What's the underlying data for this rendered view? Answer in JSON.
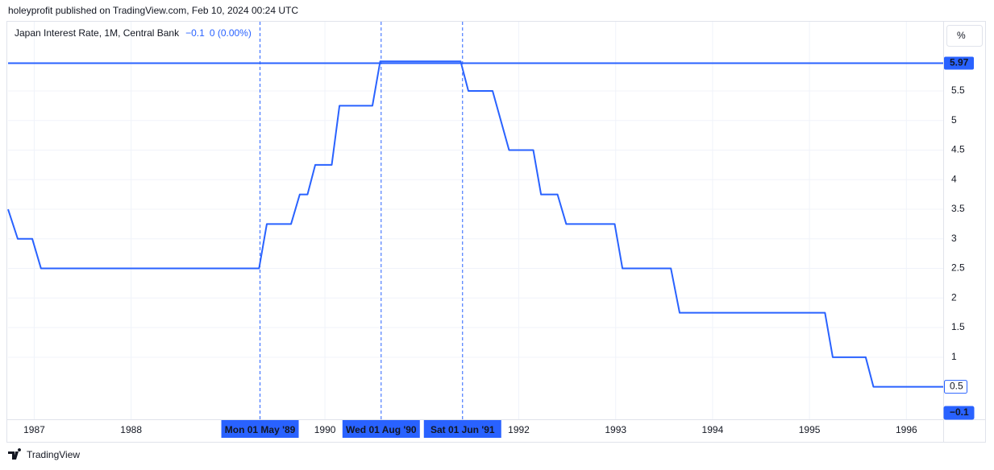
{
  "chart_data": {
    "type": "line",
    "caption": "holeyprofit published on TradingView.com, Feb 10, 2024 00:24 UTC",
    "title": "Japan Interest Rate, 1M, Central Bank",
    "header_value": "−0.1",
    "header_change": "0 (0.00%)",
    "unit_button": "%",
    "footer": "TradingView",
    "x": [
      1986.73,
      1986.83,
      1986.98,
      1987.07,
      1989.32,
      1989.4,
      1989.65,
      1989.74,
      1989.82,
      1989.9,
      1990.07,
      1990.15,
      1990.49,
      1990.57,
      1991.4,
      1991.48,
      1991.73,
      1991.9,
      1992.15,
      1992.23,
      1992.4,
      1992.49,
      1992.99,
      1993.07,
      1993.57,
      1993.66,
      1995.16,
      1995.24,
      1995.58,
      1995.66,
      1996.38
    ],
    "series": [
      {
        "name": "Japan Interest Rate",
        "color": "#2962ff",
        "values": [
          3.5,
          3,
          3,
          2.5,
          2.5,
          3.25,
          3.25,
          3.75,
          3.75,
          4.25,
          4.25,
          5.25,
          5.25,
          6,
          6,
          5.5,
          5.5,
          4.5,
          4.5,
          3.75,
          3.75,
          3.25,
          3.25,
          2.5,
          2.5,
          1.75,
          1.75,
          1,
          1,
          0.5,
          0.5
        ]
      }
    ],
    "xlim": [
      1986.73,
      1996.38
    ],
    "xticks": [
      1987,
      1988,
      1990,
      1992,
      1993,
      1994,
      1995,
      1996
    ],
    "ylim": [
      -0.05,
      6.67
    ],
    "yticks": [
      1,
      1.5,
      2,
      2.5,
      3,
      3.5,
      4,
      4.5,
      5,
      5.5
    ],
    "grid": true,
    "price_lines": [
      {
        "value": 5.97,
        "style": "solid"
      }
    ],
    "price_labels": [
      {
        "value": 0.5,
        "style": "outline"
      },
      {
        "value": -0.1,
        "label": "−0.1",
        "style": "filled"
      }
    ],
    "crosshairs": [
      {
        "x": 1989.33,
        "label": "Mon 01 May '89"
      },
      {
        "x": 1990.58,
        "label": "Wed 01 Aug '90"
      },
      {
        "x": 1991.42,
        "label": "Sat 01 Jun '91"
      }
    ]
  }
}
